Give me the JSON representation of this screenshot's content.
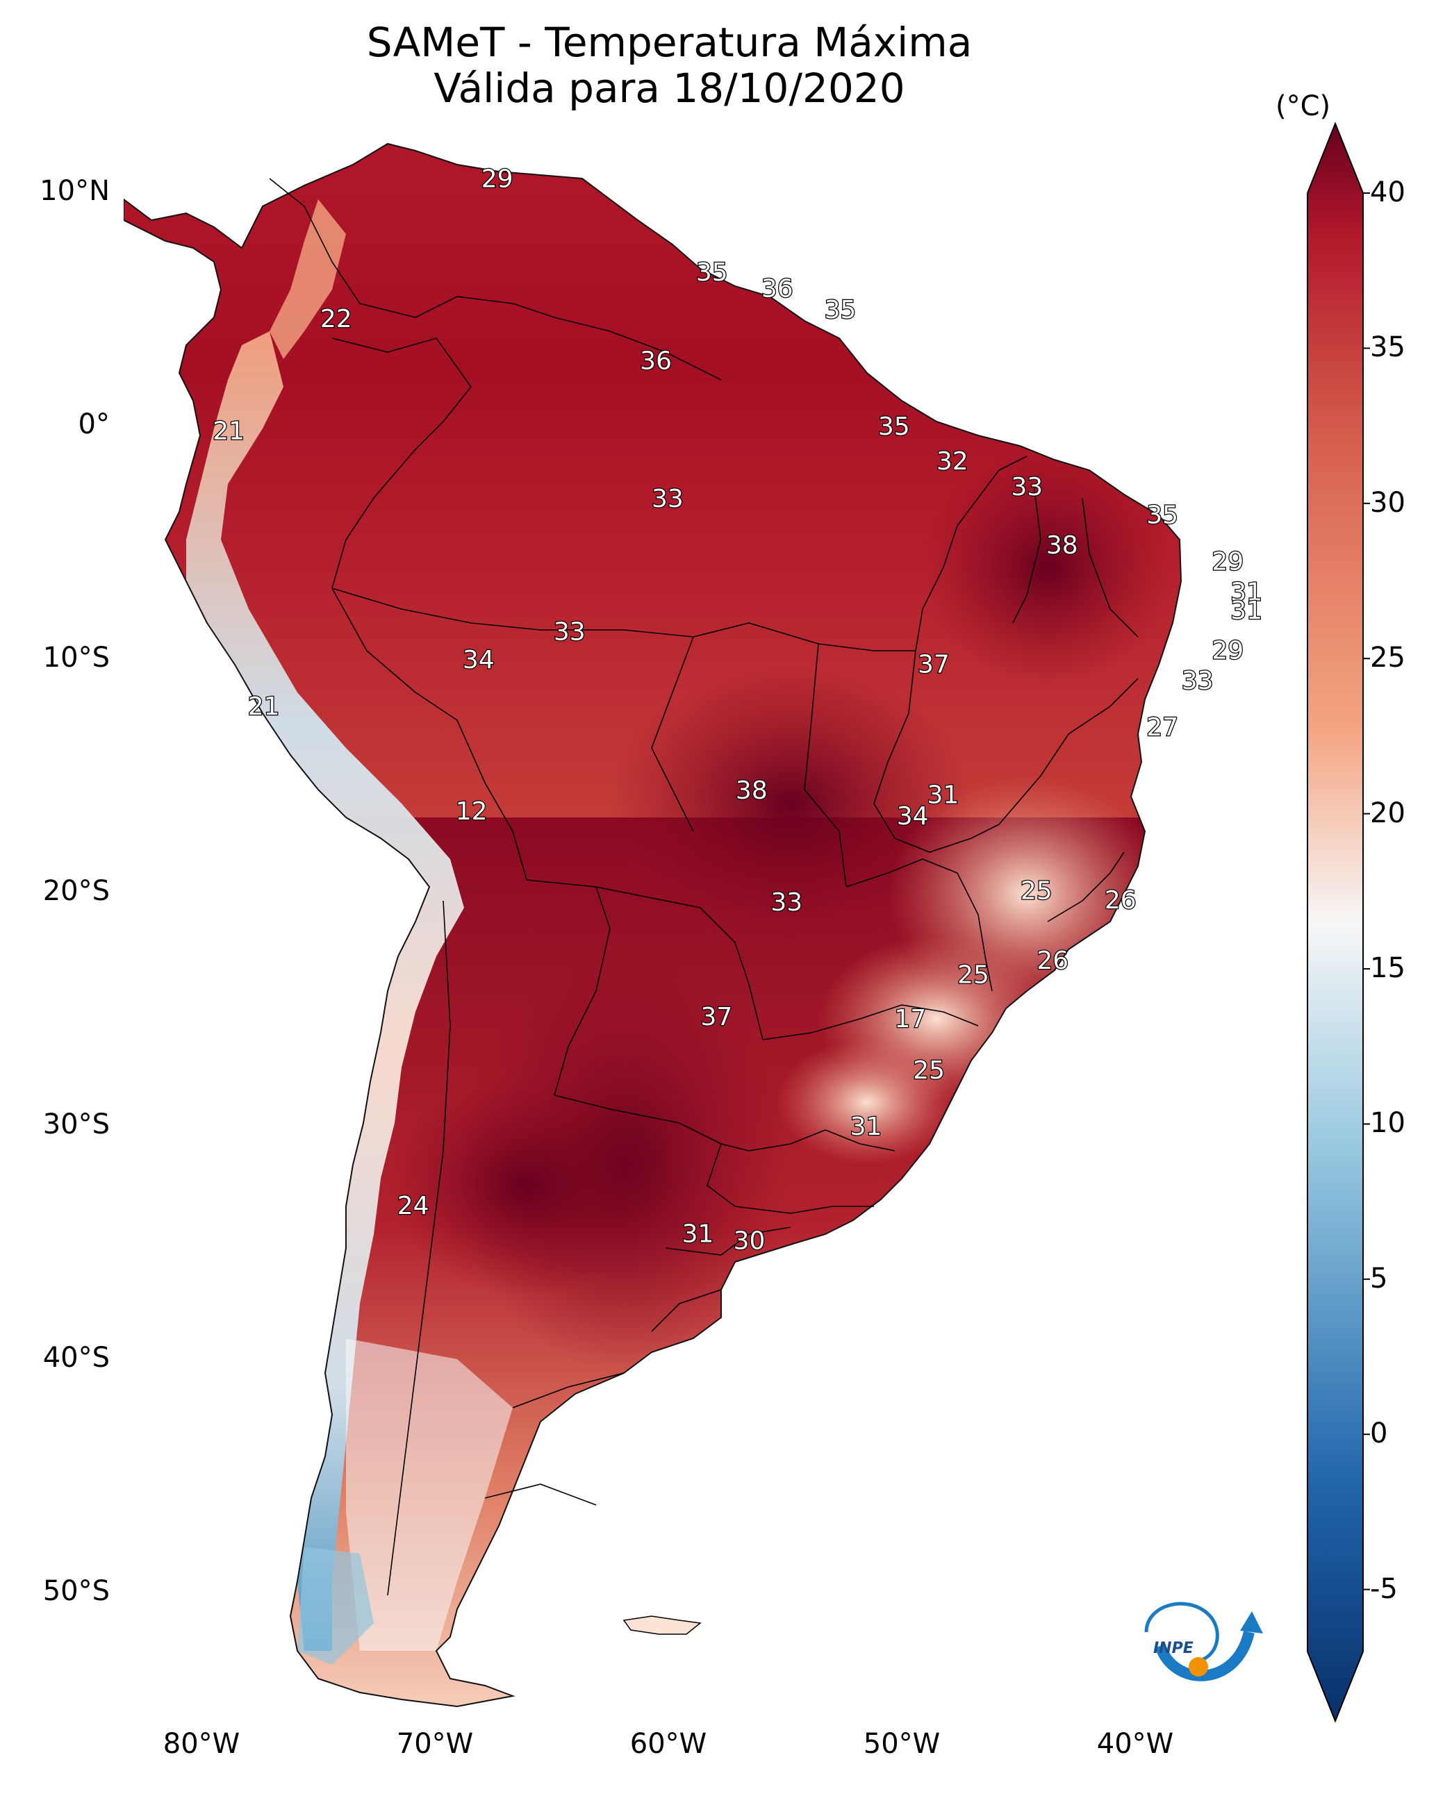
{
  "title": {
    "line1": "SAMeT - Temperatura Máxima",
    "line2": "Válida para 18/10/2020"
  },
  "axes": {
    "lat_labels": [
      "10°N",
      "0°",
      "10°S",
      "20°S",
      "30°S",
      "40°S",
      "50°S"
    ],
    "lon_labels": [
      "80°W",
      "70°W",
      "60°W",
      "50°W",
      "40°W"
    ]
  },
  "colorbar": {
    "unit": "(°C)",
    "ticks": [
      "40",
      "35",
      "30",
      "25",
      "20",
      "15",
      "10",
      "5",
      "0",
      "-5"
    ],
    "min": -7,
    "max": 40,
    "colors": {
      "cold_extreme": "#08306b",
      "cold": "#2166ac",
      "cool": "#92c5de",
      "neutral": "#f7f7f7",
      "warm": "#f4a582",
      "hot": "#d6604d",
      "very_hot": "#b2182b",
      "hot_extreme": "#67001f"
    }
  },
  "station_values": [
    {
      "label": "29",
      "lon": -67.0,
      "lat": 10.6
    },
    {
      "label": "35",
      "lon": -57.8,
      "lat": 6.6
    },
    {
      "label": "36",
      "lon": -55.0,
      "lat": 5.9
    },
    {
      "label": "35",
      "lon": -52.3,
      "lat": 5.0
    },
    {
      "label": "22",
      "lon": -73.9,
      "lat": 4.6
    },
    {
      "label": "36",
      "lon": -60.2,
      "lat": 2.8
    },
    {
      "label": "21",
      "lon": -78.5,
      "lat": -0.2
    },
    {
      "label": "35",
      "lon": -50.0,
      "lat": 0.0
    },
    {
      "label": "32",
      "lon": -47.5,
      "lat": -1.5
    },
    {
      "label": "33",
      "lon": -59.7,
      "lat": -3.1
    },
    {
      "label": "33",
      "lon": -44.3,
      "lat": -2.6
    },
    {
      "label": "35",
      "lon": -38.5,
      "lat": -3.8
    },
    {
      "label": "38",
      "lon": -42.8,
      "lat": -5.1
    },
    {
      "label": "29",
      "lon": -35.7,
      "lat": -5.8
    },
    {
      "label": "31",
      "lon": -34.9,
      "lat": -7.1
    },
    {
      "label": "31",
      "lon": -34.9,
      "lat": -7.9
    },
    {
      "label": "33",
      "lon": -63.9,
      "lat": -8.8
    },
    {
      "label": "29",
      "lon": -35.7,
      "lat": -9.6
    },
    {
      "label": "34",
      "lon": -67.8,
      "lat": -10.0
    },
    {
      "label": "37",
      "lon": -48.3,
      "lat": -10.2
    },
    {
      "label": "33",
      "lon": -37.0,
      "lat": -10.9
    },
    {
      "label": "21",
      "lon": -77.0,
      "lat": -12.0
    },
    {
      "label": "27",
      "lon": -38.5,
      "lat": -12.9
    },
    {
      "label": "38",
      "lon": -56.1,
      "lat": -15.6
    },
    {
      "label": "31",
      "lon": -47.9,
      "lat": -15.8
    },
    {
      "label": "34",
      "lon": -49.2,
      "lat": -16.7
    },
    {
      "label": "12",
      "lon": -68.1,
      "lat": -16.5
    },
    {
      "label": "25",
      "lon": -43.9,
      "lat": -19.9
    },
    {
      "label": "26",
      "lon": -40.3,
      "lat": -20.3
    },
    {
      "label": "33",
      "lon": -54.6,
      "lat": -20.4
    },
    {
      "label": "26",
      "lon": -43.2,
      "lat": -22.9
    },
    {
      "label": "25",
      "lon": -46.6,
      "lat": -23.5
    },
    {
      "label": "17",
      "lon": -49.3,
      "lat": -25.4
    },
    {
      "label": "37",
      "lon": -57.6,
      "lat": -25.3
    },
    {
      "label": "25",
      "lon": -48.5,
      "lat": -27.6
    },
    {
      "label": "31",
      "lon": -51.2,
      "lat": -30.0
    },
    {
      "label": "24",
      "lon": -70.6,
      "lat": -33.4
    },
    {
      "label": "31",
      "lon": -58.4,
      "lat": -34.6
    },
    {
      "label": "30",
      "lon": -56.2,
      "lat": -34.9
    }
  ],
  "logo": {
    "text": "INPE"
  }
}
